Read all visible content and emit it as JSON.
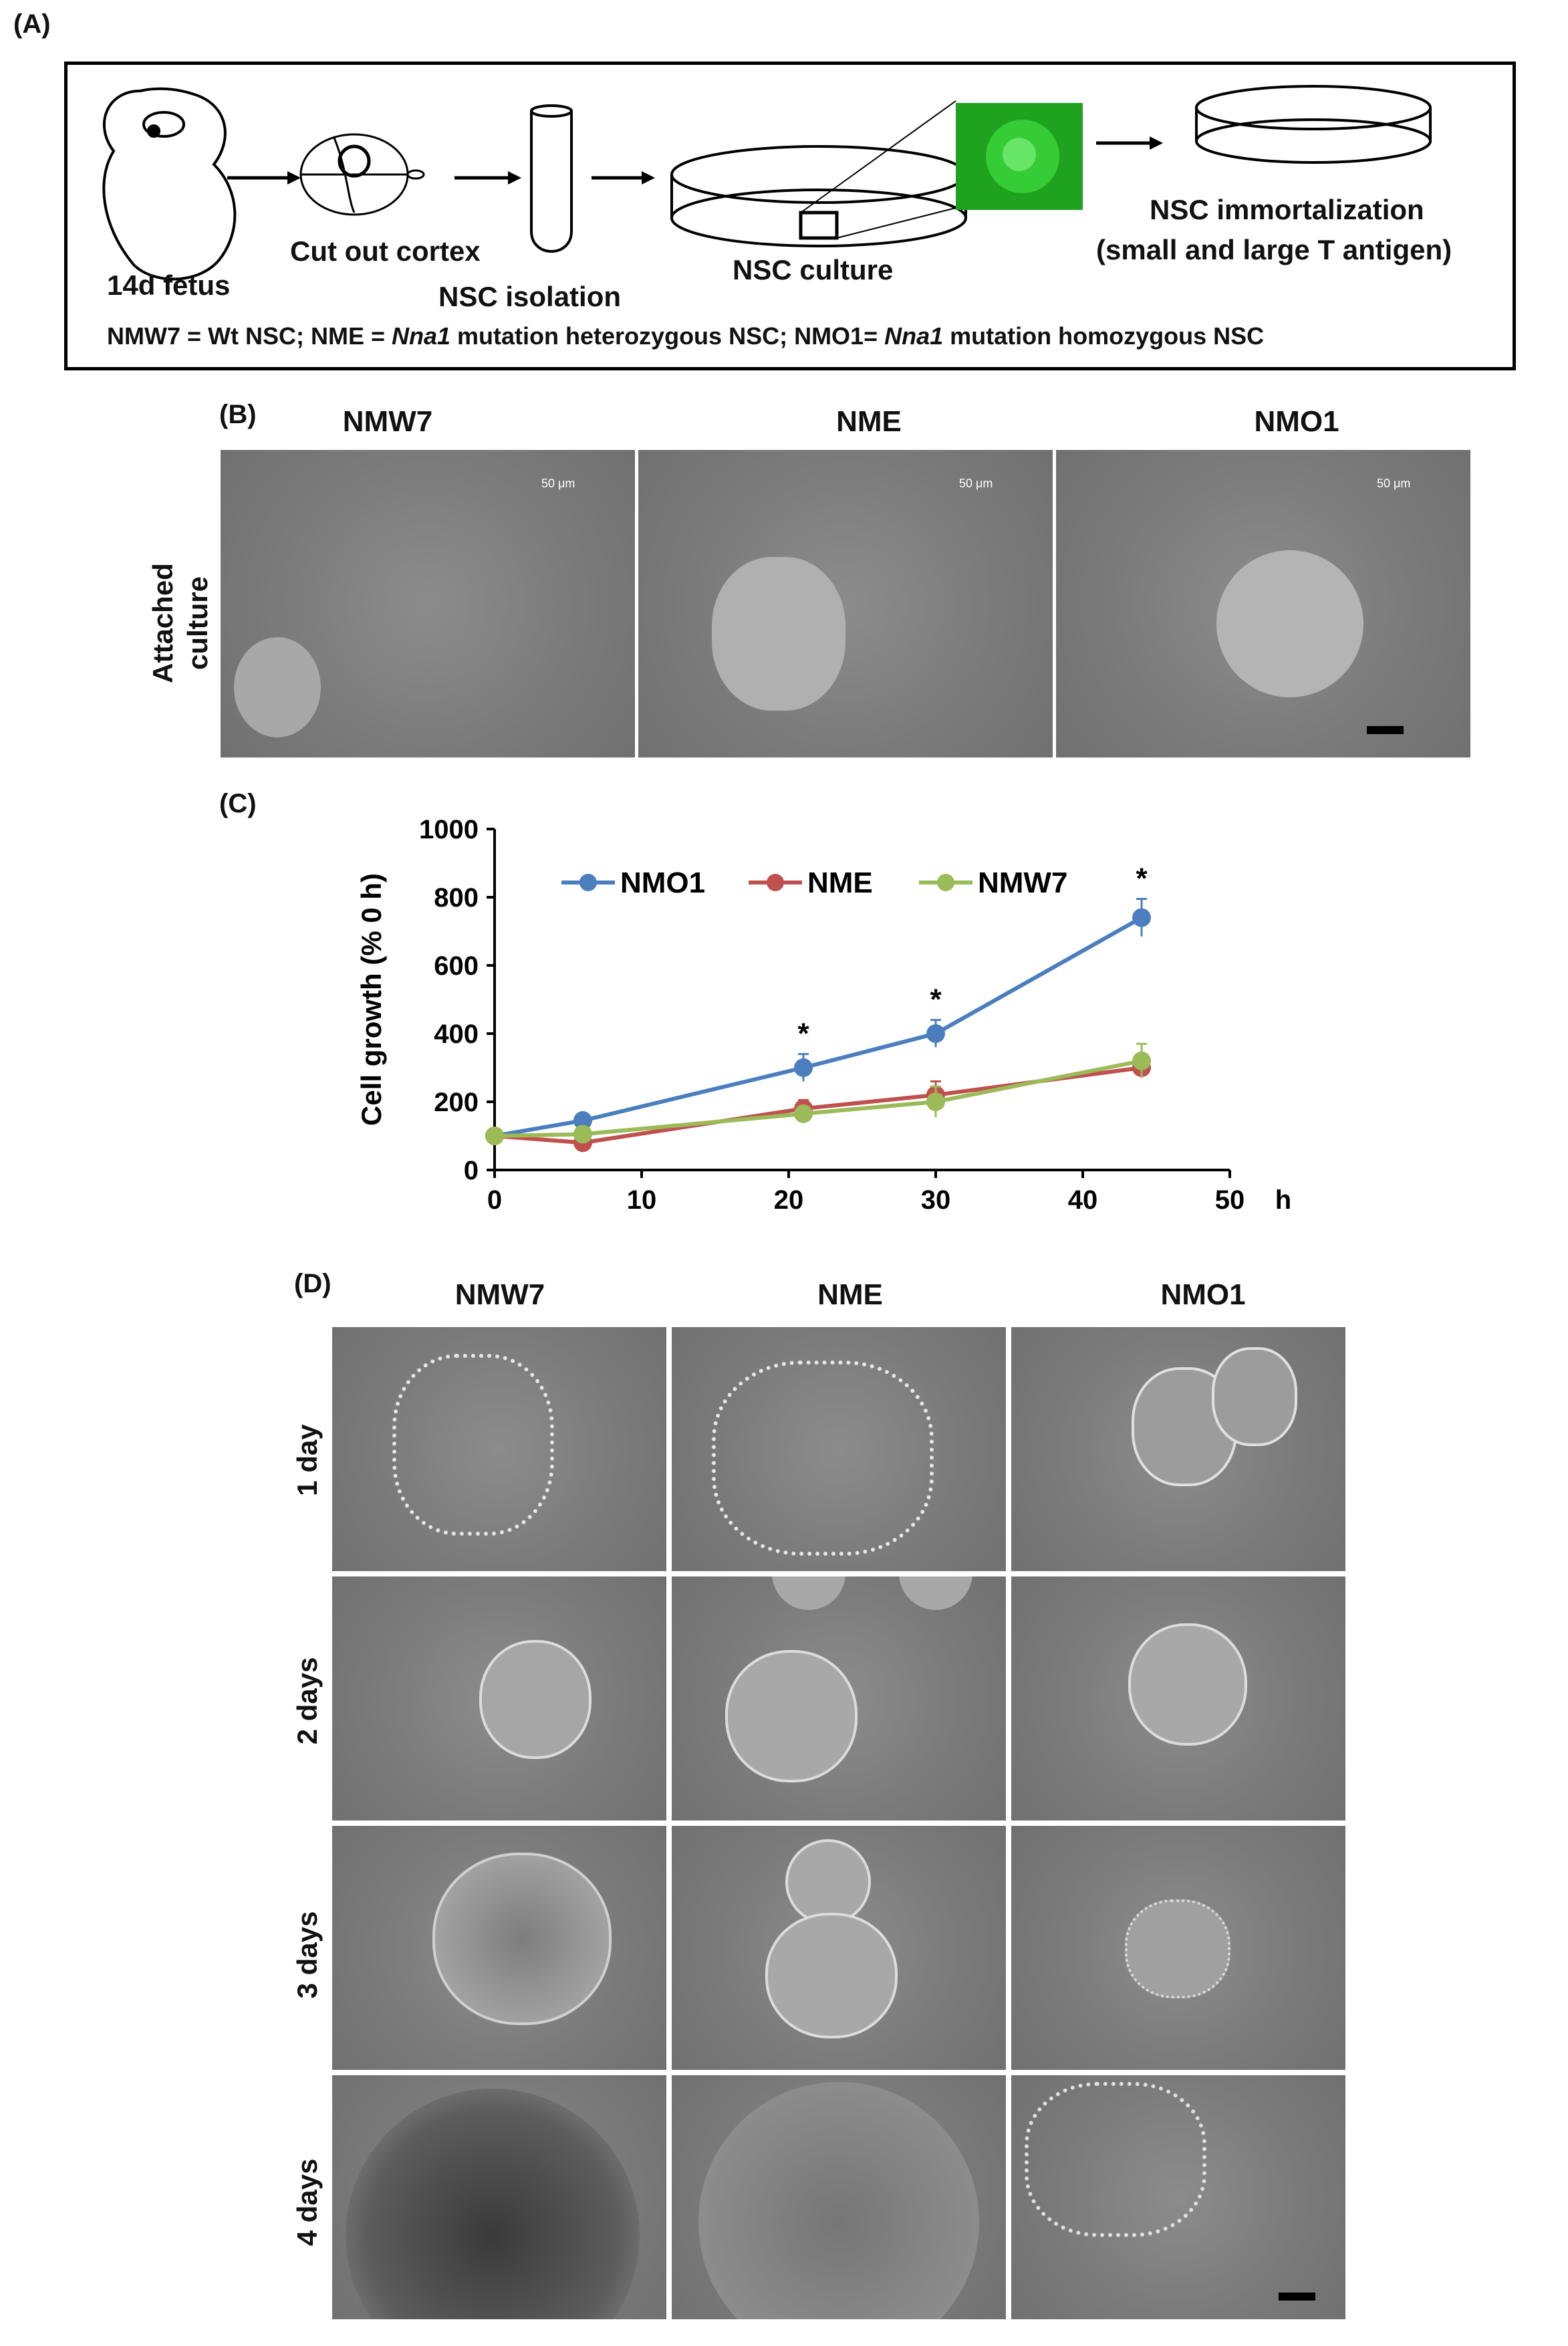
{
  "panelA": {
    "label": "(A)",
    "steps": {
      "fetus": "14d fetus",
      "cortex": "Cut out cortex",
      "isolation": "NSC isolation",
      "culture": "NSC culture",
      "immortalization_line1": "NSC immortalization",
      "immortalization_line2": "(small and large T antigen)"
    },
    "legend": {
      "part1": "NMW7 = Wt NSC; NME = ",
      "italic1": "Nna1",
      "part2": " mutation heterozygous NSC; NMO1= ",
      "italic2": "Nna1",
      "part3": " mutation homozygous NSC"
    }
  },
  "panelB": {
    "label": "(B)",
    "columns": [
      "NMW7",
      "NME",
      "NMO1"
    ],
    "row_label_line1": "Attached",
    "row_label_line2": "culture",
    "scale_text": "50 μm"
  },
  "panelC": {
    "label": "(C)",
    "x_unit": "h",
    "asterisk": "*"
  },
  "panelD": {
    "label": "(D)",
    "columns": [
      "NMW7",
      "NME",
      "NMO1"
    ],
    "rows": [
      "1 day",
      "2 days",
      "3 days",
      "4 days"
    ]
  },
  "chart_data": {
    "type": "line",
    "ylabel": "Cell growth (% 0 h)",
    "xlabel": "h",
    "x": [
      0,
      6,
      21,
      30,
      44
    ],
    "xlim": [
      0,
      50
    ],
    "ylim": [
      0,
      1000
    ],
    "xticks": [
      0,
      10,
      20,
      30,
      40,
      50
    ],
    "yticks": [
      0,
      200,
      400,
      600,
      800,
      1000
    ],
    "legend_position": "top",
    "series": [
      {
        "name": "NMO1",
        "color": "#4a7ebf",
        "values": [
          100,
          145,
          300,
          400,
          740
        ],
        "errors": [
          10,
          15,
          40,
          40,
          55
        ]
      },
      {
        "name": "NME",
        "color": "#c0504d",
        "values": [
          100,
          80,
          180,
          220,
          300
        ],
        "errors": [
          8,
          10,
          25,
          40,
          25
        ]
      },
      {
        "name": "NMW7",
        "color": "#9bbb59",
        "values": [
          100,
          105,
          165,
          200,
          320
        ],
        "errors": [
          8,
          12,
          20,
          45,
          50
        ]
      }
    ],
    "significance_at_x": [
      21,
      30,
      44
    ]
  }
}
